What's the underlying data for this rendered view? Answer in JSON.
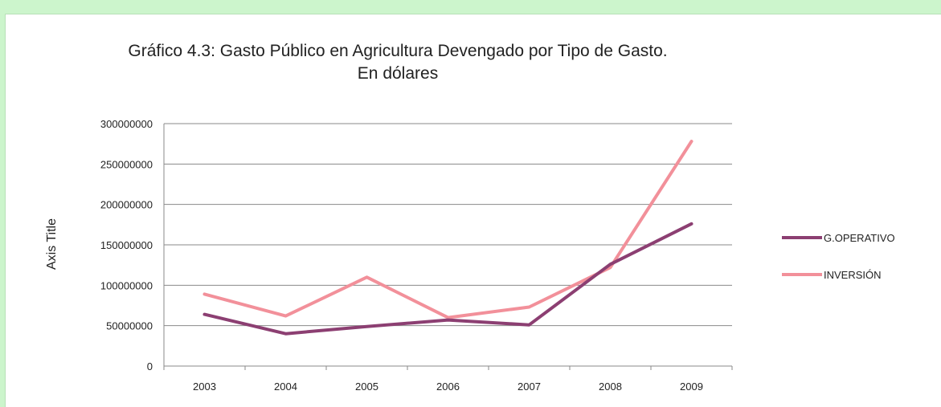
{
  "chart_data": {
    "type": "line",
    "title": "Gráfico 4.3: Gasto Público en Agricultura Devengado por Tipo de Gasto.",
    "subtitle": "En dólares",
    "xlabel": "",
    "ylabel": "Axis Title",
    "ylim": [
      0,
      300000000
    ],
    "yticks": [
      "0",
      "50000000",
      "100000000",
      "150000000",
      "200000000",
      "250000000",
      "300000000"
    ],
    "categories": [
      "2003",
      "2004",
      "2005",
      "2006",
      "2007",
      "2008",
      "2009"
    ],
    "grid": true,
    "legend_position": "right",
    "series": [
      {
        "name": "G.OPERATIVO",
        "color": "#8c3f72",
        "values": [
          64000000,
          40000000,
          49000000,
          57000000,
          51000000,
          126000000,
          176000000
        ]
      },
      {
        "name": "INVERSIÓN",
        "color": "#f2909a",
        "values": [
          89000000,
          62000000,
          110000000,
          60000000,
          73000000,
          122000000,
          278000000
        ]
      }
    ]
  }
}
